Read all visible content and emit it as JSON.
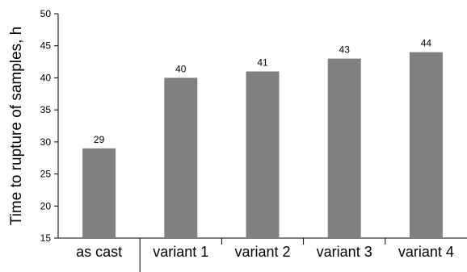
{
  "chart_data": {
    "type": "bar",
    "title": "",
    "xlabel": "",
    "ylabel": "Time to rupture of samples, h",
    "categories": [
      "as cast",
      "variant 1",
      "variant 2",
      "variant 3",
      "variant 4"
    ],
    "values": [
      29,
      40,
      41,
      43,
      44
    ],
    "ylim": [
      15,
      50
    ],
    "yticks": [
      15,
      20,
      25,
      30,
      35,
      40,
      45,
      50
    ],
    "bar_color": "#808080",
    "grid": false,
    "legend": "none"
  }
}
